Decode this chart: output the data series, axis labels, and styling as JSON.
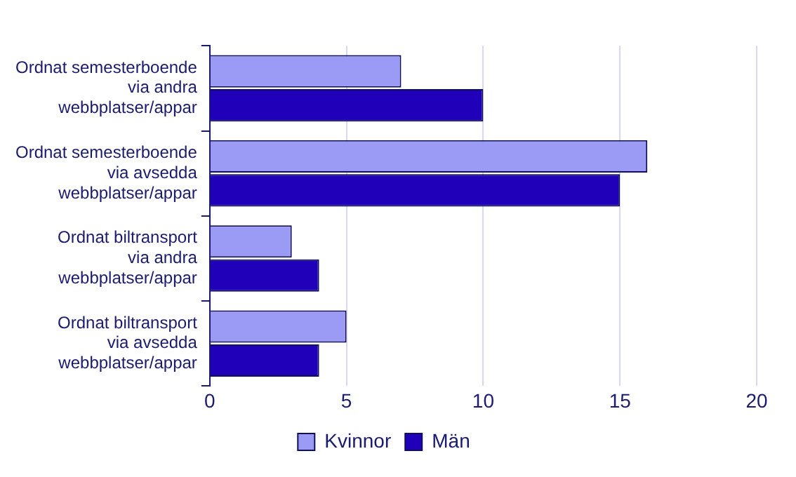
{
  "chart_data": {
    "type": "bar",
    "orientation": "horizontal",
    "categories": [
      "Ordnat semesterboende via andra webbplatser/appar",
      "Ordnat semesterboende via avsedda webbplatser/appar",
      "Ordnat biltransport via andra webbplatser/appar",
      "Ordnat biltransport via avsedda webbplatser/appar"
    ],
    "series": [
      {
        "name": "Kvinnor",
        "color": "#9b9bf5",
        "values": [
          7,
          16,
          3,
          5
        ]
      },
      {
        "name": "Män",
        "color": "#2000b8",
        "values": [
          10,
          15,
          4,
          4
        ]
      }
    ],
    "xlim": [
      0,
      20
    ],
    "xticks": [
      0,
      5,
      10,
      15,
      20
    ],
    "grid": "x",
    "legend": "bottom"
  }
}
